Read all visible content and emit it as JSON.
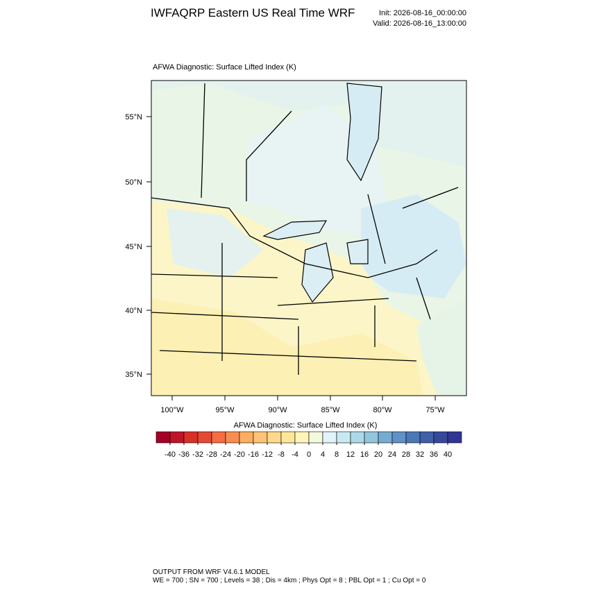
{
  "header": {
    "title": "IWFAQRP Eastern US Real Time WRF",
    "init": "Init: 2026-08-16_00:00:00",
    "valid": "Valid: 2026-08-16_13:00:00"
  },
  "map": {
    "title": "AFWA Diagnostic: Surface Lifted Index   (K)",
    "lat_labels": [
      "55°N",
      "50°N",
      "45°N",
      "40°N",
      "35°N"
    ],
    "lon_labels": [
      "100°W",
      "95°W",
      "90°W",
      "85°W",
      "80°W",
      "75°W"
    ]
  },
  "colorbar": {
    "title": "AFWA Diagnostic: Surface Lifted Index  (K)",
    "ticks": [
      -40,
      -36,
      -32,
      -28,
      -24,
      -20,
      -16,
      -12,
      -8,
      -4,
      0,
      4,
      8,
      12,
      16,
      20,
      24,
      28,
      32,
      36,
      40
    ],
    "colors": [
      "#a50026",
      "#c0142b",
      "#d73027",
      "#e34a33",
      "#f46d43",
      "#f88d52",
      "#fdae61",
      "#fec376",
      "#fed98b",
      "#fee79a",
      "#fff5b8",
      "#f2f9dc",
      "#e0f3f8",
      "#c8e9f1",
      "#abd9e9",
      "#92c5de",
      "#74add1",
      "#5f92c6",
      "#4b78b6",
      "#3f5fa8",
      "#36479c",
      "#313695"
    ]
  },
  "footer": {
    "model": "OUTPUT FROM WRF V4.6.1 MODEL",
    "config": "WE = 700 ; SN = 700 ; Levels = 38 ; Dis = 4km ; Phys Opt = 8 ; PBL Opt = 1 ; Cu Opt = 0"
  }
}
